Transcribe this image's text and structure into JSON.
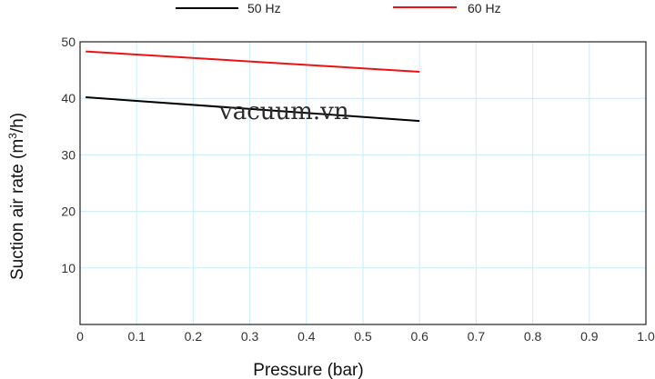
{
  "chart_data": {
    "type": "line",
    "xlabel": "Pressure (bar)",
    "ylabel_main": "Suction air rate (m",
    "ylabel_sup": "3",
    "ylabel_end": "/h)",
    "xlim": [
      0,
      1.0
    ],
    "ylim": [
      0,
      50
    ],
    "xticks": [
      "0",
      "0.1",
      "0.2",
      "0.3",
      "0.4",
      "0.5",
      "0.6",
      "0.7",
      "0.8",
      "0.9",
      "1.0"
    ],
    "yticks": [
      "10",
      "20",
      "30",
      "40",
      "50"
    ],
    "grid": true,
    "legend_position": "top",
    "watermark": "vacuum.vn",
    "series": [
      {
        "name": "50 Hz",
        "color": "#000000",
        "x": [
          0.01,
          0.6
        ],
        "y": [
          40.2,
          36.0
        ]
      },
      {
        "name": "60 Hz",
        "color": "#ee1111",
        "x": [
          0.01,
          0.6
        ],
        "y": [
          48.3,
          44.7
        ]
      }
    ]
  },
  "colors": {
    "grid": "#c9ecfa",
    "frame": "#222222"
  }
}
